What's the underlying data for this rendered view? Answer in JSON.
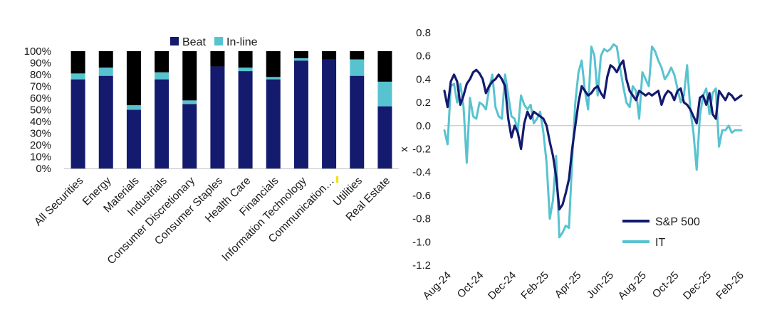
{
  "colors": {
    "beat": "#141a6e",
    "inline": "#58c3d0",
    "miss": "#000000",
    "sp500": "#141a6e",
    "it": "#58c3d0",
    "axis": "#bfbfbf",
    "text": "#1a1a1a",
    "marker": "#f4e100"
  },
  "chart_data": [
    {
      "type": "bar",
      "stacked": true,
      "categories": [
        "All Securities",
        "Energy",
        "Materials",
        "Industrials",
        "Consumer Discretionary",
        "Consumer Staples",
        "Health Care",
        "Financials",
        "Information Technology",
        "Communication…",
        "Utilities",
        "Real Estate"
      ],
      "series": [
        {
          "name": "Beat",
          "values": [
            76,
            79,
            50,
            76,
            55,
            87,
            83,
            76,
            92,
            93,
            79,
            53
          ]
        },
        {
          "name": "In-line",
          "values": [
            5,
            7,
            4,
            6,
            3,
            0,
            3,
            2,
            2,
            0,
            14,
            21
          ]
        },
        {
          "name": "",
          "values": [
            19,
            14,
            46,
            18,
            42,
            13,
            14,
            22,
            6,
            7,
            7,
            26
          ]
        }
      ],
      "ylim": [
        0,
        100
      ],
      "yticks": [
        "0%",
        "10%",
        "20%",
        "30%",
        "40%",
        "50%",
        "60%",
        "70%",
        "80%",
        "90%",
        "100%"
      ],
      "legend": {
        "position": "top",
        "entries": [
          "Beat",
          "In-line"
        ]
      }
    },
    {
      "type": "line",
      "ylabel": "x",
      "ylim": [
        -1.2,
        0.8
      ],
      "yticks": [
        "0.8",
        "0.6",
        "0.4",
        "0.2",
        "0.0",
        "-0.2",
        "-0.4",
        "-0.6",
        "-0.8",
        "-1.0",
        "-1.2"
      ],
      "xticks": [
        "Aug-24",
        "Oct-24",
        "Dec-24",
        "Feb-25",
        "Apr-25",
        "Jun-25",
        "Aug-25",
        "Oct-25",
        "Dec-25",
        "Feb-26"
      ],
      "x_range": [
        "Aug-24",
        "Feb-26"
      ],
      "series": [
        {
          "name": "S&P 500",
          "values": [
            0.3,
            0.16,
            0.38,
            0.44,
            0.38,
            0.18,
            0.26,
            0.36,
            0.4,
            0.46,
            0.48,
            0.45,
            0.4,
            0.28,
            0.34,
            0.38,
            0.4,
            0.44,
            0.4,
            0.34,
            0.06,
            -0.1,
            0.0,
            -0.06,
            -0.2,
            0.02,
            0.12,
            0.06,
            0.12,
            0.1,
            0.08,
            0.06,
            0.0,
            -0.14,
            -0.26,
            -0.44,
            -0.72,
            -0.68,
            -0.58,
            -0.46,
            -0.2,
            0.0,
            0.2,
            0.34,
            0.3,
            0.26,
            0.28,
            0.32,
            0.34,
            0.28,
            0.24,
            0.42,
            0.52,
            0.5,
            0.46,
            0.52,
            0.56,
            0.4,
            0.3,
            0.26,
            0.22,
            0.3,
            0.28,
            0.26,
            0.28,
            0.26,
            0.28,
            0.3,
            0.18,
            0.26,
            0.3,
            0.28,
            0.22,
            0.3,
            0.32,
            0.2,
            0.18,
            0.14,
            0.08,
            0.02,
            0.24,
            0.26,
            0.18,
            0.28,
            0.1,
            0.06,
            0.3,
            0.26,
            0.22,
            0.28,
            0.26,
            0.22,
            0.24,
            0.26
          ]
        },
        {
          "name": "IT",
          "values": [
            -0.04,
            -0.16,
            0.34,
            0.36,
            0.2,
            0.36,
            0.16,
            -0.32,
            0.24,
            0.08,
            0.06,
            0.2,
            0.18,
            0.14,
            0.32,
            0.44,
            0.16,
            0.08,
            0.06,
            0.44,
            0.26,
            0.08,
            0.06,
            -0.04,
            0.26,
            0.18,
            0.14,
            0.18,
            0.02,
            0.06,
            0.12,
            -0.06,
            -0.32,
            -0.8,
            -0.64,
            -0.26,
            -0.96,
            -0.92,
            -0.86,
            -0.88,
            -0.3,
            0.2,
            0.46,
            0.56,
            0.3,
            0.14,
            0.68,
            0.6,
            0.26,
            0.6,
            0.66,
            0.64,
            0.66,
            0.7,
            0.68,
            0.5,
            0.34,
            0.2,
            0.16,
            0.34,
            0.3,
            0.06,
            0.46,
            0.4,
            0.34,
            0.68,
            0.64,
            0.56,
            0.5,
            0.4,
            0.44,
            0.5,
            0.44,
            0.32,
            0.2,
            0.26,
            0.52,
            0.14,
            -0.06,
            -0.38,
            0.08,
            0.26,
            0.32,
            0.1,
            0.28,
            0.32,
            -0.18,
            -0.04,
            -0.04,
            0.0,
            -0.06,
            -0.04,
            -0.04,
            -0.04
          ]
        }
      ],
      "legend": {
        "position": "lower-right",
        "entries": [
          "S&P 500",
          "IT"
        ]
      }
    }
  ]
}
